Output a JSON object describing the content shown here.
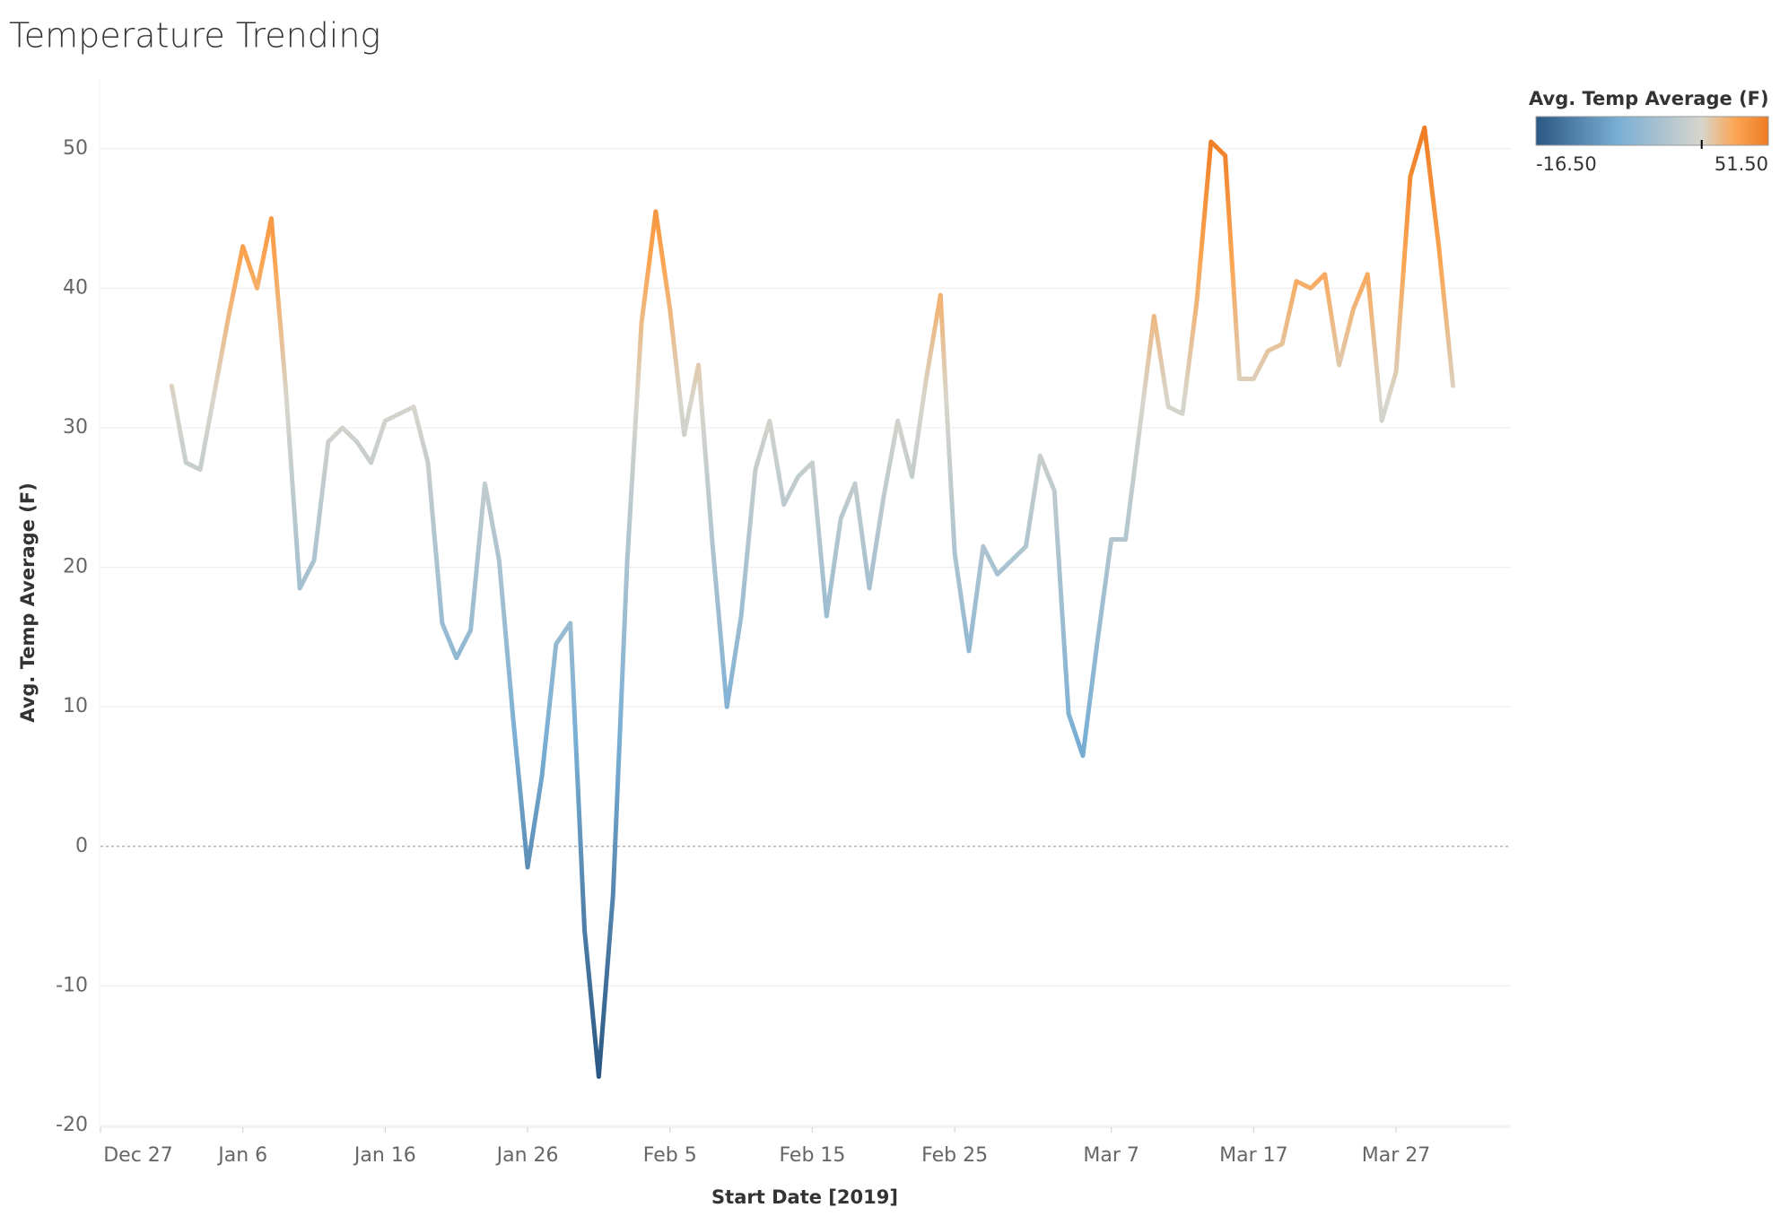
{
  "chart_data": {
    "type": "line",
    "title": "Temperature Trending",
    "x_label": "Start Date [2019]",
    "y_label": "Avg. Temp Average (F)",
    "x": [
      "Jan 1",
      "Jan 2",
      "Jan 3",
      "Jan 4",
      "Jan 5",
      "Jan 6",
      "Jan 7",
      "Jan 8",
      "Jan 9",
      "Jan 10",
      "Jan 11",
      "Jan 12",
      "Jan 13",
      "Jan 14",
      "Jan 15",
      "Jan 16",
      "Jan 17",
      "Jan 18",
      "Jan 19",
      "Jan 20",
      "Jan 21",
      "Jan 22",
      "Jan 23",
      "Jan 24",
      "Jan 25",
      "Jan 26",
      "Jan 27",
      "Jan 28",
      "Jan 29",
      "Jan 30",
      "Jan 31",
      "Feb 1",
      "Feb 2",
      "Feb 3",
      "Feb 4",
      "Feb 5",
      "Feb 6",
      "Feb 7",
      "Feb 8",
      "Feb 9",
      "Feb 10",
      "Feb 11",
      "Feb 12",
      "Feb 13",
      "Feb 14",
      "Feb 15",
      "Feb 16",
      "Feb 17",
      "Feb 18",
      "Feb 19",
      "Feb 20",
      "Feb 21",
      "Feb 22",
      "Feb 23",
      "Feb 24",
      "Feb 25",
      "Feb 26",
      "Feb 27",
      "Feb 28",
      "Mar 1",
      "Mar 2",
      "Mar 3",
      "Mar 4",
      "Mar 5",
      "Mar 6",
      "Mar 7",
      "Mar 8",
      "Mar 9",
      "Mar 10",
      "Mar 11",
      "Mar 12",
      "Mar 13",
      "Mar 14",
      "Mar 15",
      "Mar 16",
      "Mar 17",
      "Mar 18",
      "Mar 19",
      "Mar 20",
      "Mar 21",
      "Mar 22",
      "Mar 23",
      "Mar 24",
      "Mar 25",
      "Mar 26",
      "Mar 27",
      "Mar 28",
      "Mar 29",
      "Mar 30",
      "Mar 31"
    ],
    "series": [
      {
        "name": "Avg. Temp Average (F)",
        "values": [
          33,
          27.5,
          27,
          32.5,
          38,
          43,
          40,
          45,
          33,
          18.5,
          20.5,
          29,
          30,
          29,
          27.5,
          30.5,
          31,
          31.5,
          27.5,
          16,
          13.5,
          15.5,
          26,
          20.5,
          9,
          -1.5,
          5,
          14.5,
          16,
          -6,
          -16.5,
          -3.5,
          20.5,
          37.5,
          45.5,
          38.5,
          29.5,
          34.5,
          21.5,
          10,
          16.5,
          27,
          30.5,
          24.5,
          26.5,
          27.5,
          16.5,
          23.5,
          26,
          18.5,
          25,
          30.5,
          26.5,
          33.5,
          39.5,
          21,
          14,
          21.5,
          19.5,
          21.5,
          28,
          25.5,
          9.5,
          6.5,
          14.5,
          22,
          22,
          30,
          38,
          31.5,
          31,
          39,
          50.5,
          49.5,
          33.5,
          33.5,
          35.5,
          36,
          40.5,
          40,
          41,
          34.5,
          38.5,
          41,
          30.5,
          34,
          48,
          51.5,
          43,
          33
        ]
      }
    ],
    "xlim": [
      "Dec 27",
      "Apr 4"
    ],
    "xticks": [
      "Dec 27",
      "Jan 6",
      "Jan 16",
      "Jan 26",
      "Feb 5",
      "Feb 15",
      "Feb 25",
      "Mar 7",
      "Mar 17",
      "Mar 27"
    ],
    "ylim": [
      -20,
      55
    ],
    "yticks": [
      -20,
      -10,
      0,
      10,
      20,
      30,
      40,
      50
    ],
    "grid": true,
    "legend": {
      "title": "Avg. Temp Average (F)",
      "position": "top-right"
    },
    "color_scale": {
      "min": {
        "value": -16.5,
        "label": "-16.50"
      },
      "max": {
        "value": 51.5,
        "label": "51.50"
      },
      "center": 32,
      "colors": [
        "#2a5783",
        "#7aafd5",
        "#d8d5cb",
        "#fba654",
        "#ef7b23"
      ]
    }
  }
}
